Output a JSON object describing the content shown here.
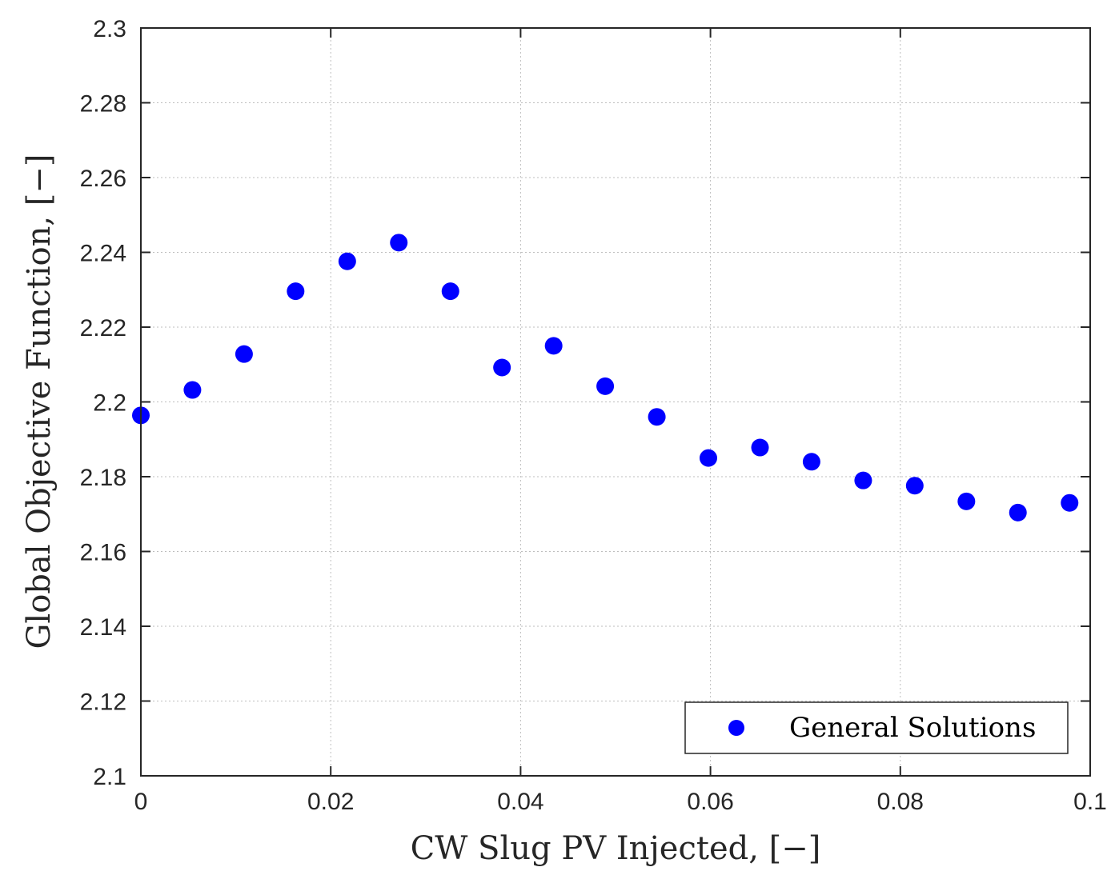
{
  "chart_data": {
    "type": "scatter",
    "title": "",
    "xlabel": "CW Slug PV Injected,  [−]",
    "ylabel": "Global Objective Function,  [−]",
    "xlim": [
      0,
      0.1
    ],
    "ylim": [
      2.1,
      2.3
    ],
    "grid": true,
    "legend_position": "bottom-right",
    "x_ticks": [
      0,
      0.02,
      0.04,
      0.06,
      0.08,
      0.1
    ],
    "x_tick_labels": [
      "0",
      "0.02",
      "0.04",
      "0.06",
      "0.08",
      "0.1"
    ],
    "y_ticks": [
      2.1,
      2.12,
      2.14,
      2.16,
      2.18,
      2.2,
      2.22,
      2.24,
      2.26,
      2.28,
      2.3
    ],
    "y_tick_labels": [
      "2.1",
      "2.12",
      "2.14",
      "2.16",
      "2.18",
      "2.2",
      "2.22",
      "2.24",
      "2.26",
      "2.28",
      "2.3"
    ],
    "series": [
      {
        "name": "General Solutions",
        "color": "#0000ff",
        "x": [
          0,
          0.00543,
          0.01087,
          0.0163,
          0.02174,
          0.02717,
          0.03261,
          0.03804,
          0.04348,
          0.04891,
          0.05435,
          0.05978,
          0.06522,
          0.07065,
          0.07609,
          0.08152,
          0.08696,
          0.09239,
          0.09783
        ],
        "y": [
          2.1964,
          2.2032,
          2.2128,
          2.2296,
          2.2376,
          2.2426,
          2.2296,
          2.2092,
          2.215,
          2.2042,
          2.196,
          2.185,
          2.1878,
          2.184,
          2.179,
          2.1776,
          2.1734,
          2.1704,
          2.173
        ]
      }
    ]
  }
}
